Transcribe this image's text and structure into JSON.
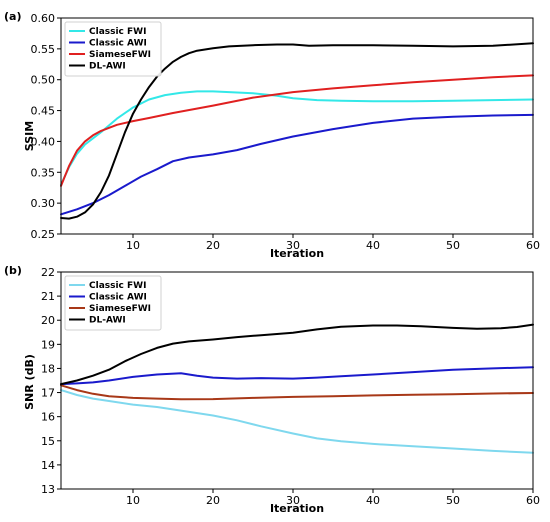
{
  "chart_data": [
    {
      "type": "line",
      "panel_label": "(a)",
      "xlabel": "Iteration",
      "ylabel": "SSIM",
      "xlim": [
        1,
        60
      ],
      "ylim": [
        0.25,
        0.6
      ],
      "xticks": [
        10,
        20,
        30,
        40,
        50,
        60
      ],
      "yticks": [
        0.25,
        0.3,
        0.35,
        0.4,
        0.45,
        0.5,
        0.55,
        0.6
      ],
      "ytick_labels": [
        "0.25",
        "0.30",
        "0.35",
        "0.40",
        "0.45",
        "0.50",
        "0.55",
        "0.60"
      ],
      "grid": false,
      "legend_position": "top-left",
      "series": [
        {
          "name": "Classic FWI",
          "color": "#33e8e8",
          "x": [
            1,
            2,
            3,
            4,
            5,
            6,
            8,
            10,
            12,
            14,
            16,
            18,
            20,
            22,
            25,
            28,
            30,
            33,
            36,
            40,
            45,
            50,
            55,
            60
          ],
          "y": [
            0.33,
            0.358,
            0.38,
            0.395,
            0.405,
            0.415,
            0.437,
            0.455,
            0.468,
            0.475,
            0.479,
            0.481,
            0.481,
            0.48,
            0.478,
            0.474,
            0.47,
            0.467,
            0.466,
            0.465,
            0.465,
            0.466,
            0.467,
            0.468
          ]
        },
        {
          "name": "Classic AWI",
          "color": "#1a1acc",
          "x": [
            1,
            3,
            5,
            7,
            9,
            11,
            13,
            15,
            17,
            20,
            23,
            26,
            30,
            35,
            40,
            45,
            50,
            55,
            60
          ],
          "y": [
            0.282,
            0.29,
            0.3,
            0.313,
            0.328,
            0.343,
            0.355,
            0.368,
            0.374,
            0.379,
            0.386,
            0.396,
            0.408,
            0.42,
            0.43,
            0.437,
            0.44,
            0.442,
            0.443
          ]
        },
        {
          "name": "SiameseFWI",
          "color": "#e02020",
          "x": [
            1,
            2,
            3,
            4,
            5,
            6,
            8,
            10,
            12,
            15,
            20,
            25,
            30,
            35,
            40,
            45,
            50,
            55,
            60
          ],
          "y": [
            0.328,
            0.36,
            0.385,
            0.4,
            0.41,
            0.417,
            0.427,
            0.433,
            0.438,
            0.446,
            0.458,
            0.471,
            0.48,
            0.486,
            0.491,
            0.496,
            0.5,
            0.504,
            0.507
          ]
        },
        {
          "name": "DL-AWI",
          "color": "#000000",
          "x": [
            1,
            2,
            3,
            4,
            5,
            6,
            7,
            8,
            9,
            10,
            11,
            12,
            13,
            14,
            15,
            16,
            17,
            18,
            20,
            22,
            25,
            28,
            30,
            32,
            35,
            40,
            45,
            50,
            55,
            60
          ],
          "y": [
            0.276,
            0.275,
            0.278,
            0.285,
            0.298,
            0.318,
            0.345,
            0.38,
            0.415,
            0.445,
            0.468,
            0.488,
            0.505,
            0.518,
            0.529,
            0.537,
            0.543,
            0.547,
            0.551,
            0.554,
            0.556,
            0.557,
            0.557,
            0.555,
            0.556,
            0.556,
            0.555,
            0.554,
            0.555,
            0.559
          ]
        }
      ]
    },
    {
      "type": "line",
      "panel_label": "(b)",
      "xlabel": "Iteration",
      "ylabel": "SNR (dB)",
      "xlim": [
        1,
        60
      ],
      "ylim": [
        13,
        22
      ],
      "xticks": [
        10,
        20,
        30,
        40,
        50,
        60
      ],
      "yticks": [
        13,
        14,
        15,
        16,
        17,
        18,
        19,
        20,
        21,
        22
      ],
      "ytick_labels": [
        "13",
        "14",
        "15",
        "16",
        "17",
        "18",
        "19",
        "20",
        "21",
        "22"
      ],
      "grid": false,
      "legend_position": "top-left",
      "series": [
        {
          "name": "Classic FWI",
          "color": "#7fd8ee",
          "x": [
            1,
            3,
            5,
            7,
            10,
            13,
            16,
            20,
            23,
            26,
            30,
            33,
            36,
            40,
            45,
            50,
            55,
            60
          ],
          "y": [
            17.1,
            16.9,
            16.75,
            16.65,
            16.5,
            16.4,
            16.25,
            16.05,
            15.85,
            15.6,
            15.3,
            15.1,
            14.98,
            14.87,
            14.77,
            14.68,
            14.58,
            14.5
          ]
        },
        {
          "name": "Classic AWI",
          "color": "#1a1acc",
          "x": [
            1,
            3,
            5,
            7,
            10,
            13,
            16,
            18,
            20,
            23,
            26,
            30,
            33,
            36,
            40,
            45,
            50,
            55,
            60
          ],
          "y": [
            17.35,
            17.38,
            17.42,
            17.5,
            17.65,
            17.75,
            17.8,
            17.7,
            17.62,
            17.58,
            17.6,
            17.58,
            17.62,
            17.68,
            17.75,
            17.85,
            17.95,
            18.0,
            18.05
          ]
        },
        {
          "name": "SiameseFWI",
          "color": "#a83818",
          "x": [
            1,
            3,
            5,
            7,
            10,
            13,
            16,
            20,
            25,
            30,
            35,
            40,
            45,
            50,
            55,
            60
          ],
          "y": [
            17.3,
            17.1,
            16.95,
            16.85,
            16.78,
            16.75,
            16.72,
            16.73,
            16.78,
            16.82,
            16.85,
            16.88,
            16.91,
            16.93,
            16.96,
            16.98
          ]
        },
        {
          "name": "DL-AWI",
          "color": "#000000",
          "x": [
            1,
            3,
            5,
            7,
            9,
            11,
            13,
            15,
            17,
            20,
            23,
            26,
            30,
            33,
            36,
            40,
            43,
            46,
            50,
            53,
            56,
            58,
            60
          ],
          "y": [
            17.35,
            17.5,
            17.7,
            17.95,
            18.3,
            18.6,
            18.85,
            19.03,
            19.12,
            19.2,
            19.3,
            19.38,
            19.48,
            19.62,
            19.73,
            19.78,
            19.78,
            19.75,
            19.68,
            19.65,
            19.67,
            19.72,
            19.82
          ]
        }
      ]
    }
  ]
}
